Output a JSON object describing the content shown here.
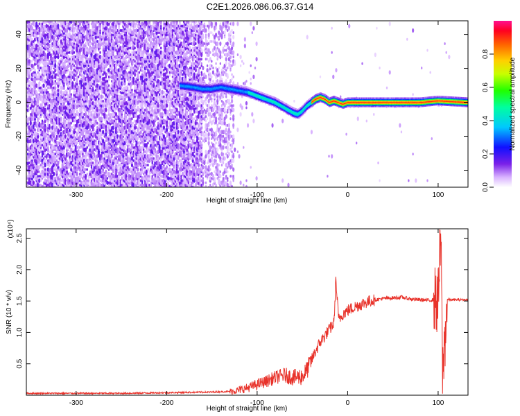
{
  "title": "C2E1.2026.086.06.37.G14",
  "colors": {
    "snr_line": "#e8322a",
    "ridge": "#e0203a"
  },
  "chart_data": [
    {
      "type": "heatmap",
      "xlabel": "Height of straight line (km)",
      "ylabel": "Frequency (Hz)",
      "xlim": [
        -355,
        133
      ],
      "ylim": [
        -50,
        48
      ],
      "x_ticks": [
        -300,
        -200,
        -100,
        0,
        100
      ],
      "y_ticks": [
        -40,
        -20,
        0,
        20,
        40
      ],
      "grid": false,
      "colorbar": {
        "label": "Normalized spectral amplitude",
        "range": [
          0,
          1
        ],
        "ticks": [
          "0.0",
          "0.2",
          "0.4",
          "0.6",
          "0.8"
        ]
      },
      "ridge": {
        "x": [
          -185,
          -170,
          -160,
          -150,
          -140,
          -130,
          -120,
          -110,
          -100,
          -90,
          -80,
          -70,
          -60,
          -55,
          -50,
          -45,
          -40,
          -35,
          -30,
          -25,
          -20,
          -15,
          -10,
          -5,
          0,
          20,
          40,
          60,
          80,
          100,
          133
        ],
        "y": [
          10,
          9,
          8,
          8,
          9,
          8,
          7,
          6,
          4,
          2,
          0,
          -3,
          -6,
          -7,
          -5,
          -2,
          0,
          2,
          3,
          2,
          0,
          1,
          0,
          -1,
          0,
          0,
          0,
          0,
          0,
          1,
          0
        ]
      }
    },
    {
      "type": "line",
      "xlabel": "Height of straight line (km)",
      "ylabel": "SNR (10 * v/v)",
      "y_multiplier": "(x10⁴)",
      "xlim": [
        -355,
        133
      ],
      "ylim": [
        0,
        2.65
      ],
      "x_ticks": [
        -300,
        -200,
        -100,
        0,
        100
      ],
      "y_ticks": [
        "0.5",
        "1.0",
        "1.5",
        "2.0",
        "2.5"
      ],
      "y_tick_values": [
        0.5,
        1.0,
        1.5,
        2.0,
        2.5
      ],
      "grid": false,
      "series": [
        {
          "x": [
            -355,
            -300,
            -250,
            -200,
            -150,
            -130,
            -120,
            -110,
            -100,
            -90,
            -80,
            -70,
            -60,
            -50,
            -45,
            -40,
            -35,
            -30,
            -25,
            -20,
            -15,
            -13,
            -10,
            -5,
            0,
            10,
            20,
            30,
            40,
            50,
            60,
            70,
            80,
            90,
            95,
            100,
            103,
            105,
            110,
            120,
            133
          ],
          "y": [
            0.03,
            0.03,
            0.03,
            0.04,
            0.05,
            0.06,
            0.08,
            0.12,
            0.17,
            0.22,
            0.28,
            0.32,
            0.28,
            0.3,
            0.4,
            0.55,
            0.72,
            0.85,
            0.95,
            1.05,
            1.15,
            1.85,
            1.2,
            1.3,
            1.35,
            1.42,
            1.48,
            1.52,
            1.54,
            1.55,
            1.56,
            1.53,
            1.52,
            1.51,
            1.52,
            1.5,
            2.55,
            0.3,
            1.52,
            1.52,
            1.52
          ]
        }
      ]
    }
  ]
}
